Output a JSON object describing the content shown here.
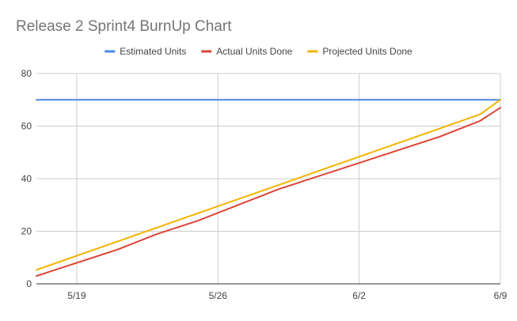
{
  "chart_data": {
    "type": "line",
    "title": "Release 2 Sprint4 BurnUp Chart",
    "xlabel": "",
    "ylabel": "",
    "x_axis": {
      "type": "date",
      "min": "2021-05-17",
      "max": "2021-06-09",
      "ticks": [
        "2021-05-19",
        "2021-05-26",
        "2021-06-02",
        "2021-06-09"
      ],
      "tick_labels": [
        "5/19",
        "5/26",
        "6/2",
        "6/9"
      ]
    },
    "y_axis": {
      "min": 0,
      "max": 80,
      "ticks": [
        0,
        20,
        40,
        60,
        80
      ]
    },
    "grid": true,
    "legend_position": "top",
    "series": [
      {
        "name": "Estimated Units",
        "color": "#4a86e8",
        "x": [
          "2021-05-17",
          "2021-06-09"
        ],
        "values": [
          70,
          70
        ]
      },
      {
        "name": "Actual Units Done",
        "color": "#db4437",
        "x": [
          "2021-05-17",
          "2021-05-21",
          "2021-05-23",
          "2021-05-25",
          "2021-05-29",
          "2021-06-04",
          "2021-06-06",
          "2021-06-08",
          "2021-06-09"
        ],
        "values": [
          3,
          13,
          19,
          24,
          36,
          51,
          56,
          62,
          67
        ]
      },
      {
        "name": "Projected Units Done",
        "color": "#f4b400",
        "x": [
          "2021-05-17",
          "2021-06-08",
          "2021-06-09"
        ],
        "values": [
          5.3,
          64.5,
          70
        ]
      }
    ]
  }
}
